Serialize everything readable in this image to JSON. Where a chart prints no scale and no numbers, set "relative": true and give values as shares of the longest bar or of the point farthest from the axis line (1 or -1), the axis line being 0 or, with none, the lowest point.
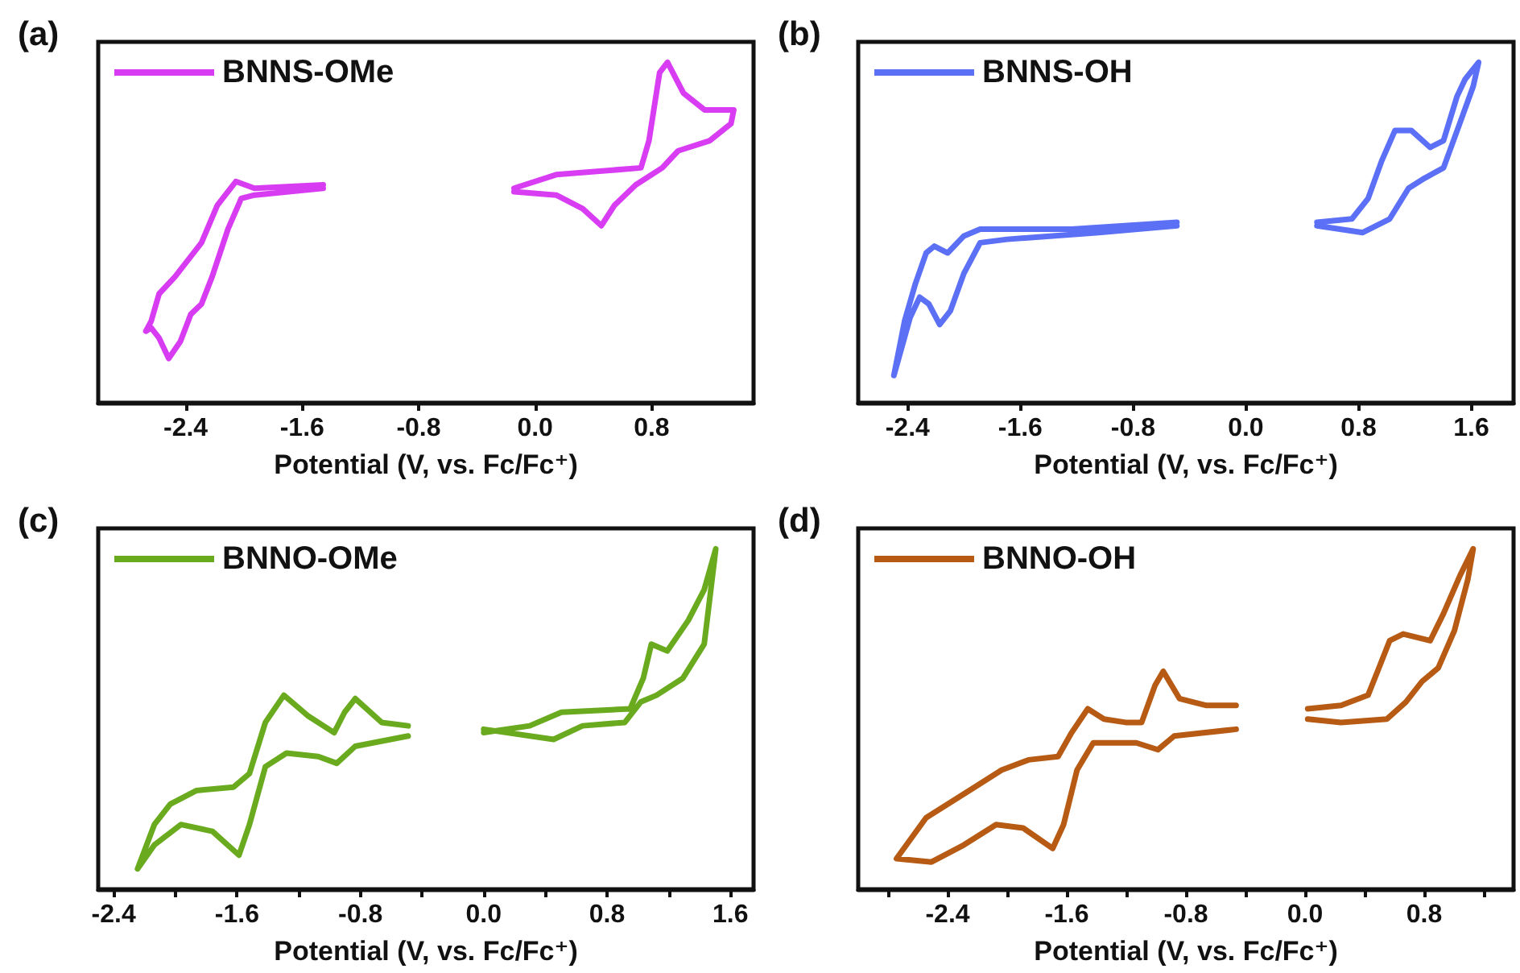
{
  "chart_data": [
    {
      "type": "line",
      "title": "(a)",
      "xlabel": "Potential (V, vs. Fc/Fc⁺)",
      "relative": true,
      "xlim": [
        -3.0,
        1.5
      ],
      "xticks": [
        -2.4,
        -1.6,
        -0.8,
        {
          "value": 0,
          "label": "0.0"
        },
        0.8
      ],
      "legend": "top left",
      "series": [
        {
          "name": "BNNS-OMe",
          "color": "#d83cf2",
          "x": [
            -1.455,
            -1.927,
            -2.055,
            -2.182,
            -2.291,
            -2.473,
            -2.582,
            -2.636,
            -2.673,
            -2.636,
            -2.582,
            -2.516,
            -2.436,
            -2.364,
            -2.291,
            -2.218,
            -2.109,
            -2.018,
            -1.927,
            -1.455
          ],
          "values": [
            0.64,
            0.63,
            0.65,
            0.58,
            0.47,
            0.37,
            0.32,
            0.24,
            0.21,
            0.22,
            0.19,
            0.13,
            0.18,
            0.26,
            0.29,
            0.37,
            0.51,
            0.6,
            0.61,
            0.63
          ]
        },
        {
          "color": "#d83cf3",
          "x": [
            -0.145,
            0.145,
            0.727,
            0.782,
            0.855,
            0.909,
            1.018,
            1.164,
            1.364,
            1.345,
            1.2,
            0.982,
            0.873,
            0.691,
            0.545,
            0.455,
            0.327,
            0.145,
            -0.145
          ],
          "values": [
            0.63,
            0.67,
            0.69,
            0.77,
            0.97,
            1.0,
            0.91,
            0.86,
            0.86,
            0.82,
            0.77,
            0.74,
            0.69,
            0.64,
            0.58,
            0.52,
            0.57,
            0.61,
            0.62
          ]
        }
      ]
    },
    {
      "type": "line",
      "title": "(b)",
      "xlabel": "Potential (V, vs. Fc/Fc⁺)",
      "relative": true,
      "xlim": [
        -2.75,
        1.9
      ],
      "xticks": [
        -2.4,
        -1.6,
        -0.8,
        {
          "value": 0,
          "label": "0.0"
        },
        0.8,
        1.6
      ],
      "legend": "top left",
      "series": [
        {
          "name": "BNNS-OH",
          "color": "#5b70f5",
          "x": [
            -0.489,
            -1.235,
            -1.885,
            -2.0,
            -2.115,
            -2.21,
            -2.268,
            -2.344,
            -2.421,
            -2.497,
            -2.382,
            -2.314,
            -2.249,
            -2.172,
            -2.096,
            -2.0,
            -1.885,
            -1.694,
            -1.044,
            -0.489
          ],
          "values": [
            0.53,
            0.51,
            0.51,
            0.49,
            0.44,
            0.46,
            0.44,
            0.35,
            0.24,
            0.08,
            0.25,
            0.31,
            0.29,
            0.23,
            0.27,
            0.38,
            0.47,
            0.48,
            0.5,
            0.52
          ]
        },
        {
          "color": "#5b70f6",
          "x": [
            0.505,
            0.753,
            0.868,
            0.964,
            1.059,
            1.174,
            1.308,
            1.403,
            1.499,
            1.556,
            1.652,
            1.614,
            1.518,
            1.403,
            1.27,
            1.155,
            1.021,
            0.83,
            0.505
          ],
          "values": [
            0.53,
            0.54,
            0.6,
            0.71,
            0.8,
            0.8,
            0.75,
            0.77,
            0.9,
            0.95,
            1.0,
            0.93,
            0.82,
            0.69,
            0.66,
            0.63,
            0.54,
            0.5,
            0.52
          ]
        }
      ]
    },
    {
      "type": "line",
      "title": "(c)",
      "xlabel": "Potential (V, vs. Fc/Fc⁺)",
      "relative": true,
      "xlim": [
        -2.5,
        1.75
      ],
      "xticks": [
        -2.4,
        {
          "value": -2.0,
          "label": null
        },
        -1.6,
        {
          "value": -1.2,
          "label": null
        },
        -0.8,
        {
          "value": -0.4,
          "label": null
        },
        {
          "value": 0,
          "label": "0.0"
        },
        {
          "value": 0.4,
          "label": null
        },
        0.8,
        {
          "value": 1.2,
          "label": null
        },
        1.6
      ],
      "legend": "top left",
      "series": [
        {
          "name": "BNNO-OMe",
          "color": "#6aaa1e",
          "x": [
            -0.49,
            -0.662,
            -0.833,
            -0.902,
            -0.97,
            -1.142,
            -1.296,
            -1.416,
            -1.519,
            -1.622,
            -1.862,
            -2.033,
            -2.136,
            -2.245,
            -2.136,
            -1.964,
            -1.759,
            -1.587,
            -1.519,
            -1.416,
            -1.279,
            -1.073,
            -0.953,
            -0.833,
            -0.49
          ],
          "values": [
            0.48,
            0.49,
            0.56,
            0.52,
            0.46,
            0.51,
            0.57,
            0.49,
            0.34,
            0.3,
            0.29,
            0.25,
            0.19,
            0.06,
            0.13,
            0.19,
            0.17,
            0.1,
            0.19,
            0.36,
            0.4,
            0.39,
            0.37,
            0.42,
            0.45
          ]
        },
        {
          "color": "#6aaa1e",
          "x": [
            0.0,
            0.298,
            0.504,
            0.95,
            1.035,
            1.087,
            1.19,
            1.327,
            1.43,
            1.505,
            1.481,
            1.43,
            1.292,
            1.121,
            1.018,
            0.915,
            0.641,
            0.453,
            0.0
          ],
          "values": [
            0.46,
            0.48,
            0.52,
            0.53,
            0.62,
            0.72,
            0.7,
            0.79,
            0.88,
            1.0,
            0.91,
            0.72,
            0.62,
            0.57,
            0.55,
            0.49,
            0.48,
            0.44,
            0.47
          ]
        }
      ]
    },
    {
      "type": "line",
      "title": "(d)",
      "xlabel": "Potential (V, vs. Fc/Fc⁺)",
      "relative": true,
      "xlim": [
        -3.0,
        1.4
      ],
      "xticks": [
        {
          "value": -2.8,
          "label": null
        },
        -2.4,
        {
          "value": -2.0,
          "label": null
        },
        -1.6,
        {
          "value": -1.2,
          "label": null
        },
        -0.8,
        {
          "value": -0.4,
          "label": null
        },
        {
          "value": 0,
          "label": "0.0"
        },
        {
          "value": 0.4,
          "label": null
        },
        0.8,
        {
          "value": 1.2,
          "label": null
        }
      ],
      "legend": "top left",
      "series": [
        {
          "name": "BNNO-OH",
          "color": "#b65a14",
          "x": [
            -0.463,
            -0.662,
            -0.843,
            -0.952,
            -1.006,
            -1.097,
            -1.205,
            -1.35,
            -1.459,
            -1.567,
            -1.658,
            -1.857,
            -2.037,
            -2.218,
            -2.544,
            -2.743,
            -2.508,
            -2.291,
            -2.074,
            -1.893,
            -1.694,
            -1.621,
            -1.531,
            -1.422,
            -1.133,
            -0.988,
            -0.879,
            -0.463
          ],
          "values": [
            0.54,
            0.54,
            0.56,
            0.64,
            0.6,
            0.49,
            0.49,
            0.5,
            0.53,
            0.46,
            0.39,
            0.38,
            0.35,
            0.3,
            0.21,
            0.09,
            0.08,
            0.13,
            0.19,
            0.18,
            0.12,
            0.19,
            0.35,
            0.43,
            0.43,
            0.41,
            0.45,
            0.47
          ]
        },
        {
          "color": "#b65a14",
          "x": [
            0.018,
            0.242,
            0.423,
            0.496,
            0.568,
            0.659,
            0.84,
            0.93,
            1.039,
            1.129,
            1.093,
            1.003,
            0.894,
            0.785,
            0.677,
            0.55,
            0.242,
            0.018
          ],
          "values": [
            0.53,
            0.54,
            0.57,
            0.65,
            0.73,
            0.75,
            0.73,
            0.81,
            0.92,
            1.0,
            0.91,
            0.76,
            0.65,
            0.61,
            0.55,
            0.5,
            0.49,
            0.5
          ]
        }
      ]
    }
  ]
}
